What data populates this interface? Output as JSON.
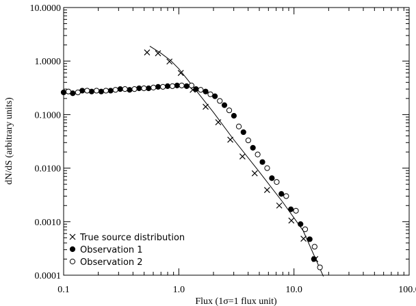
{
  "chart_data": {
    "type": "scatter",
    "xlabel": "Flux (1σ=1 flux unit)",
    "ylabel": "dN/dS (arbitrary units)",
    "x_scale": "log",
    "y_scale": "log",
    "xlim": [
      0.1,
      100
    ],
    "ylim": [
      0.0001,
      10
    ],
    "x_ticks": [
      0.1,
      1,
      10,
      100
    ],
    "x_tick_labels": [
      "0.1",
      "1.0",
      "10.0",
      "100.0"
    ],
    "y_ticks": [
      0.0001,
      0.001,
      0.01,
      0.1,
      1,
      10
    ],
    "y_tick_labels": [
      "0.0001",
      "0.0010",
      "0.0100",
      "0.1000",
      "1.0000",
      "10.0000"
    ],
    "grid": false,
    "legend_position": "bottom-left",
    "series": [
      {
        "name": "True source distribution",
        "marker": "cross",
        "x": [
          0.53,
          0.66,
          0.83,
          1.04,
          1.32,
          1.71,
          2.2,
          2.8,
          3.57,
          4.56,
          5.84,
          7.45,
          9.49,
          12.1,
          15.3
        ],
        "y": [
          1.45,
          1.4,
          0.98,
          0.6,
          0.29,
          0.14,
          0.072,
          0.034,
          0.0165,
          0.008,
          0.0039,
          0.002,
          0.00105,
          0.00048,
          0.0002
        ]
      },
      {
        "name": "Observation 1",
        "marker": "filled-circle",
        "x": [
          0.1,
          0.12,
          0.145,
          0.175,
          0.212,
          0.256,
          0.31,
          0.374,
          0.452,
          0.547,
          0.661,
          0.799,
          0.966,
          1.17,
          1.41,
          1.71,
          2.06,
          2.49,
          3.01,
          3.64,
          4.4,
          5.32,
          6.43,
          7.77,
          9.4,
          11.4,
          13.7,
          14.9
        ],
        "y": [
          0.26,
          0.25,
          0.28,
          0.27,
          0.27,
          0.28,
          0.3,
          0.29,
          0.31,
          0.31,
          0.33,
          0.34,
          0.35,
          0.34,
          0.3,
          0.27,
          0.22,
          0.15,
          0.095,
          0.047,
          0.024,
          0.013,
          0.0065,
          0.0033,
          0.0017,
          0.0009,
          0.00047,
          0.0002
        ]
      },
      {
        "name": "Observation 2",
        "marker": "open-circle",
        "x": [
          0.11,
          0.133,
          0.16,
          0.193,
          0.233,
          0.282,
          0.341,
          0.412,
          0.498,
          0.602,
          0.728,
          0.88,
          1.06,
          1.29,
          1.55,
          1.88,
          2.27,
          2.74,
          3.32,
          4.01,
          4.84,
          5.85,
          7.08,
          8.56,
          10.4,
          12.5,
          15.1,
          16.8
        ],
        "y": [
          0.27,
          0.26,
          0.28,
          0.28,
          0.28,
          0.29,
          0.3,
          0.3,
          0.31,
          0.32,
          0.33,
          0.34,
          0.35,
          0.35,
          0.29,
          0.24,
          0.18,
          0.12,
          0.06,
          0.033,
          0.018,
          0.01,
          0.0055,
          0.003,
          0.0016,
          0.00072,
          0.00034,
          0.00014
        ]
      },
      {
        "name": "",
        "line": "fit",
        "x": [
          0.56,
          0.7,
          0.85,
          1.0,
          1.2,
          1.5,
          2.0,
          3.0,
          5.0,
          8.0,
          12.0,
          18.0
        ],
        "y": [
          1.9,
          1.4,
          1.02,
          0.72,
          0.44,
          0.24,
          0.11,
          0.034,
          0.0085,
          0.0023,
          0.00068,
          9.5e-05
        ]
      }
    ]
  }
}
